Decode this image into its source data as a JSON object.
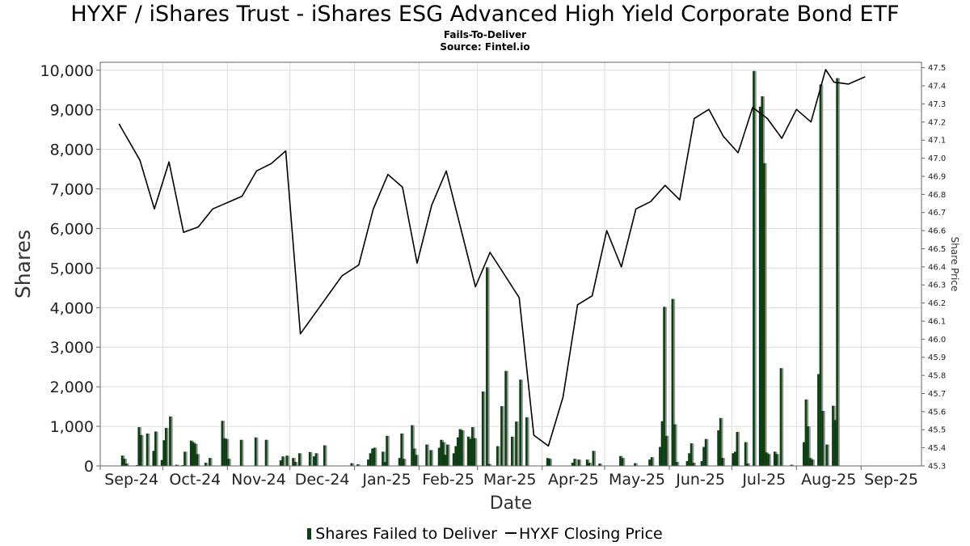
{
  "title": "HYXF / iShares Trust - iShares ESG Advanced High Yield Corporate Bond ETF",
  "subtitle": "Fails-To-Deliver",
  "source": "Source: Fintel.io",
  "legend": {
    "ftd_label": "Shares Failed to Deliver",
    "price_label": "HYXF Closing Price"
  },
  "colors": {
    "ftd_bar": "#0d3d12",
    "ftd_bar_shadow": "#8c968c",
    "price_line": "#000000",
    "grid": "#dcdcdc",
    "axis": "#666666"
  },
  "chart_data": {
    "type": "bar",
    "x_axis": {
      "label": "Date",
      "range": [
        "2024-09-01",
        "2025-09-30"
      ],
      "ticks": [
        "Sep-24",
        "Oct-24",
        "Nov-24",
        "Dec-24",
        "Jan-25",
        "Feb-25",
        "Mar-25",
        "Apr-25",
        "May-25",
        "Jun-25",
        "Jul-25",
        "Aug-25",
        "Sep-25"
      ]
    },
    "y_left": {
      "label": "Shares",
      "range": [
        0,
        10200
      ],
      "ticks": [
        "0",
        "1,000",
        "2,000",
        "3,000",
        "4,000",
        "5,000",
        "6,000",
        "7,000",
        "8,000",
        "9,000",
        "10,000"
      ]
    },
    "y_right": {
      "label": "Share Price",
      "range": [
        45.3,
        47.53
      ],
      "ticks": [
        "45.3",
        "45.4",
        "45.5",
        "45.6",
        "45.7",
        "45.8",
        "45.9",
        "46.0",
        "46.1",
        "46.2",
        "46.3",
        "46.4",
        "46.5",
        "46.6",
        "46.7",
        "46.8",
        "46.9",
        "47.0",
        "47.1",
        "47.2",
        "47.3",
        "47.4",
        "47.5"
      ]
    },
    "grid": true,
    "legend_position": "bottom-center",
    "series": [
      {
        "name": "Shares Failed to Deliver",
        "type": "bar",
        "points": [
          [
            "2024-09-11",
            260
          ],
          [
            "2024-09-12",
            180
          ],
          [
            "2024-09-13",
            60
          ],
          [
            "2024-09-18",
            20
          ],
          [
            "2024-09-19",
            980
          ],
          [
            "2024-09-20",
            780
          ],
          [
            "2024-09-23",
            820
          ],
          [
            "2024-09-26",
            380
          ],
          [
            "2024-09-27",
            870
          ],
          [
            "2024-09-30",
            150
          ],
          [
            "2024-10-01",
            650
          ],
          [
            "2024-10-02",
            960
          ],
          [
            "2024-10-04",
            1250
          ],
          [
            "2024-10-07",
            30
          ],
          [
            "2024-10-10",
            20
          ],
          [
            "2024-10-11",
            360
          ],
          [
            "2024-10-14",
            640
          ],
          [
            "2024-10-15",
            600
          ],
          [
            "2024-10-16",
            560
          ],
          [
            "2024-10-17",
            300
          ],
          [
            "2024-10-21",
            80
          ],
          [
            "2024-10-23",
            200
          ],
          [
            "2024-10-29",
            1140
          ],
          [
            "2024-10-30",
            700
          ],
          [
            "2024-10-31",
            680
          ],
          [
            "2024-11-01",
            180
          ],
          [
            "2024-11-07",
            660
          ],
          [
            "2024-11-14",
            720
          ],
          [
            "2024-11-19",
            660
          ],
          [
            "2024-11-26",
            140
          ],
          [
            "2024-11-27",
            240
          ],
          [
            "2024-11-29",
            260
          ],
          [
            "2024-12-02",
            200
          ],
          [
            "2024-12-03",
            100
          ],
          [
            "2024-12-05",
            320
          ],
          [
            "2024-12-10",
            350
          ],
          [
            "2024-12-12",
            240
          ],
          [
            "2024-12-13",
            320
          ],
          [
            "2024-12-17",
            520
          ],
          [
            "2024-12-30",
            70
          ],
          [
            "2025-01-02",
            40
          ],
          [
            "2025-01-07",
            160
          ],
          [
            "2025-01-08",
            320
          ],
          [
            "2025-01-09",
            440
          ],
          [
            "2025-01-10",
            460
          ],
          [
            "2025-01-14",
            360
          ],
          [
            "2025-01-15",
            100
          ],
          [
            "2025-01-16",
            760
          ],
          [
            "2025-01-22",
            200
          ],
          [
            "2025-01-23",
            820
          ],
          [
            "2025-01-24",
            180
          ],
          [
            "2025-01-28",
            1030
          ],
          [
            "2025-01-29",
            440
          ],
          [
            "2025-01-30",
            280
          ],
          [
            "2025-02-04",
            540
          ],
          [
            "2025-02-06",
            400
          ],
          [
            "2025-02-10",
            460
          ],
          [
            "2025-02-11",
            660
          ],
          [
            "2025-02-12",
            600
          ],
          [
            "2025-02-13",
            280
          ],
          [
            "2025-02-14",
            540
          ],
          [
            "2025-02-17",
            320
          ],
          [
            "2025-02-18",
            500
          ],
          [
            "2025-02-19",
            720
          ],
          [
            "2025-02-20",
            930
          ],
          [
            "2025-02-21",
            900
          ],
          [
            "2025-02-24",
            740
          ],
          [
            "2025-02-25",
            680
          ],
          [
            "2025-02-26",
            980
          ],
          [
            "2025-02-27",
            700
          ],
          [
            "2025-03-03",
            1880
          ],
          [
            "2025-03-05",
            5020
          ],
          [
            "2025-03-06",
            50
          ],
          [
            "2025-03-10",
            500
          ],
          [
            "2025-03-12",
            1510
          ],
          [
            "2025-03-14",
            2400
          ],
          [
            "2025-03-17",
            740
          ],
          [
            "2025-03-19",
            1120
          ],
          [
            "2025-03-21",
            2180
          ],
          [
            "2025-03-24",
            1230
          ],
          [
            "2025-04-03",
            200
          ],
          [
            "2025-04-04",
            180
          ],
          [
            "2025-04-15",
            80
          ],
          [
            "2025-04-16",
            180
          ],
          [
            "2025-04-18",
            160
          ],
          [
            "2025-04-22",
            160
          ],
          [
            "2025-04-23",
            80
          ],
          [
            "2025-04-25",
            380
          ],
          [
            "2025-04-28",
            60
          ],
          [
            "2025-05-08",
            250
          ],
          [
            "2025-05-09",
            200
          ],
          [
            "2025-05-15",
            70
          ],
          [
            "2025-05-22",
            160
          ],
          [
            "2025-05-23",
            220
          ],
          [
            "2025-05-27",
            480
          ],
          [
            "2025-05-28",
            1130
          ],
          [
            "2025-05-29",
            4020
          ],
          [
            "2025-05-30",
            760
          ],
          [
            "2025-06-02",
            4220
          ],
          [
            "2025-06-03",
            1050
          ],
          [
            "2025-06-04",
            100
          ],
          [
            "2025-06-09",
            120
          ],
          [
            "2025-06-10",
            320
          ],
          [
            "2025-06-11",
            570
          ],
          [
            "2025-06-12",
            80
          ],
          [
            "2025-06-16",
            120
          ],
          [
            "2025-06-17",
            480
          ],
          [
            "2025-06-18",
            680
          ],
          [
            "2025-06-24",
            900
          ],
          [
            "2025-06-25",
            1210
          ],
          [
            "2025-06-26",
            200
          ],
          [
            "2025-07-01",
            320
          ],
          [
            "2025-07-02",
            360
          ],
          [
            "2025-07-03",
            860
          ],
          [
            "2025-07-07",
            600
          ],
          [
            "2025-07-08",
            60
          ],
          [
            "2025-07-11",
            9980
          ],
          [
            "2025-07-14",
            9080
          ],
          [
            "2025-07-15",
            9340
          ],
          [
            "2025-07-16",
            7650
          ],
          [
            "2025-07-17",
            340
          ],
          [
            "2025-07-18",
            300
          ],
          [
            "2025-07-21",
            360
          ],
          [
            "2025-07-22",
            300
          ],
          [
            "2025-07-24",
            2470
          ],
          [
            "2025-07-29",
            30
          ],
          [
            "2025-08-04",
            600
          ],
          [
            "2025-08-05",
            1680
          ],
          [
            "2025-08-06",
            1000
          ],
          [
            "2025-08-07",
            200
          ],
          [
            "2025-08-08",
            160
          ],
          [
            "2025-08-11",
            2320
          ],
          [
            "2025-08-12",
            9640
          ],
          [
            "2025-08-13",
            1390
          ],
          [
            "2025-08-15",
            540
          ],
          [
            "2025-08-18",
            1520
          ],
          [
            "2025-08-19",
            1160
          ],
          [
            "2025-08-20",
            9800
          ]
        ]
      },
      {
        "name": "HYXF Closing Price",
        "type": "line",
        "points": [
          [
            "2024-09-10",
            47.19
          ],
          [
            "2024-09-20",
            46.99
          ],
          [
            "2024-09-27",
            46.72
          ],
          [
            "2024-10-04",
            46.98
          ],
          [
            "2024-10-11",
            46.59
          ],
          [
            "2024-10-18",
            46.62
          ],
          [
            "2024-10-25",
            46.72
          ],
          [
            "2024-11-08",
            46.79
          ],
          [
            "2024-11-15",
            46.93
          ],
          [
            "2024-11-22",
            46.97
          ],
          [
            "2024-11-29",
            47.04
          ],
          [
            "2024-12-06",
            46.03
          ],
          [
            "2024-12-26",
            46.35
          ],
          [
            "2025-01-03",
            46.41
          ],
          [
            "2025-01-10",
            46.72
          ],
          [
            "2025-01-17",
            46.91
          ],
          [
            "2025-01-24",
            46.84
          ],
          [
            "2025-01-31",
            46.42
          ],
          [
            "2025-02-07",
            46.74
          ],
          [
            "2025-02-14",
            46.93
          ],
          [
            "2025-02-28",
            46.29
          ],
          [
            "2025-03-07",
            46.48
          ],
          [
            "2025-03-21",
            46.23
          ],
          [
            "2025-03-28",
            45.47
          ],
          [
            "2025-04-04",
            45.41
          ],
          [
            "2025-04-11",
            45.68
          ],
          [
            "2025-04-18",
            46.19
          ],
          [
            "2025-04-25",
            46.24
          ],
          [
            "2025-05-02",
            46.6
          ],
          [
            "2025-05-09",
            46.4
          ],
          [
            "2025-05-16",
            46.72
          ],
          [
            "2025-05-23",
            46.76
          ],
          [
            "2025-05-30",
            46.85
          ],
          [
            "2025-06-06",
            46.77
          ],
          [
            "2025-06-13",
            47.22
          ],
          [
            "2025-06-20",
            47.27
          ],
          [
            "2025-06-27",
            47.12
          ],
          [
            "2025-07-04",
            47.03
          ],
          [
            "2025-07-11",
            47.28
          ],
          [
            "2025-07-18",
            47.22
          ],
          [
            "2025-07-25",
            47.11
          ],
          [
            "2025-08-01",
            47.27
          ],
          [
            "2025-08-08",
            47.2
          ],
          [
            "2025-08-15",
            47.49
          ],
          [
            "2025-08-19",
            47.42
          ],
          [
            "2025-08-26",
            47.41
          ],
          [
            "2025-09-03",
            47.45
          ]
        ]
      }
    ]
  }
}
